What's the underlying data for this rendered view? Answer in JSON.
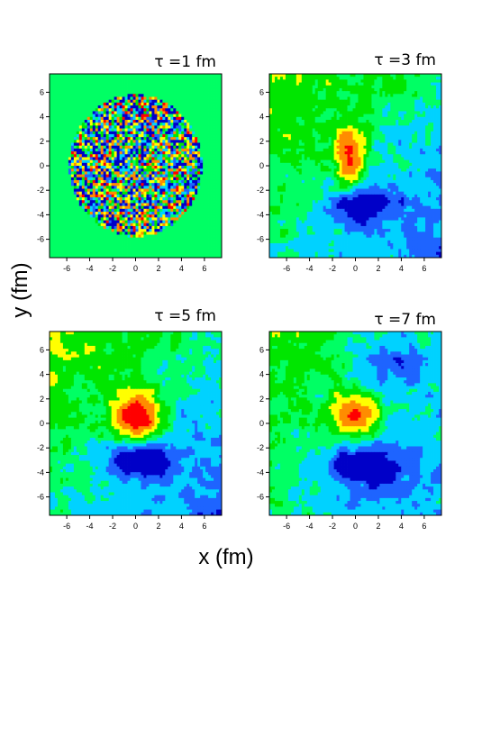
{
  "chart_data": {
    "type": "heatmap",
    "xlabel": "x (fm)",
    "ylabel": "y (fm)",
    "xlim": [
      -7.5,
      7.5
    ],
    "ylim": [
      -7.5,
      7.5
    ],
    "x_ticks": [
      -6,
      -4,
      -2,
      0,
      2,
      4,
      6
    ],
    "y_ticks": [
      -6,
      -4,
      -2,
      0,
      2,
      4,
      6
    ],
    "colormap": [
      "#0000c8",
      "#1e64ff",
      "#00d2ff",
      "#00ff64",
      "#00e600",
      "#ffff00",
      "#ff8c00",
      "#ff0000"
    ],
    "background_level_color": "#00ff64",
    "panels": [
      {
        "title": "τ =1 fm",
        "tau": 1,
        "features": [
          {
            "kind": "noise",
            "center": [
              0,
              0
            ],
            "radius": 5.8,
            "amplitude": 1.0
          }
        ]
      },
      {
        "title": "τ =3 fm",
        "tau": 3,
        "features": [
          {
            "kind": "peak",
            "center": [
              -0.5,
              0.8
            ],
            "sigma": [
              0.9,
              1.6
            ],
            "amplitude": 3.2
          },
          {
            "kind": "dip",
            "center": [
              0.5,
              -3.2
            ],
            "sigma": [
              2.0,
              1.0
            ],
            "amplitude": -2.2
          },
          {
            "kind": "gradient",
            "direction": "upper-left-positive",
            "amplitude": 0.9
          }
        ]
      },
      {
        "title": "τ =5 fm",
        "tau": 5,
        "features": [
          {
            "kind": "peak",
            "center": [
              0.2,
              0.6
            ],
            "sigma": [
              1.4,
              1.4
            ],
            "amplitude": 4.0
          },
          {
            "kind": "dip",
            "center": [
              0.5,
              -3.0
            ],
            "sigma": [
              2.0,
              1.1
            ],
            "amplitude": -2.6
          },
          {
            "kind": "gradient",
            "direction": "upper-left-positive",
            "amplitude": 0.9
          }
        ]
      },
      {
        "title": "τ =7 fm",
        "tau": 7,
        "features": [
          {
            "kind": "peak",
            "center": [
              0.0,
              0.7
            ],
            "sigma": [
              1.4,
              1.3
            ],
            "amplitude": 3.0
          },
          {
            "kind": "dip",
            "center": [
              1.0,
              -3.5
            ],
            "sigma": [
              2.4,
              1.3
            ],
            "amplitude": -2.5
          },
          {
            "kind": "dip",
            "center": [
              3.5,
              5.0
            ],
            "sigma": [
              2.5,
              1.8
            ],
            "amplitude": -1.3
          },
          {
            "kind": "gradient",
            "direction": "upper-left-positive",
            "amplitude": 0.6
          }
        ]
      }
    ]
  }
}
